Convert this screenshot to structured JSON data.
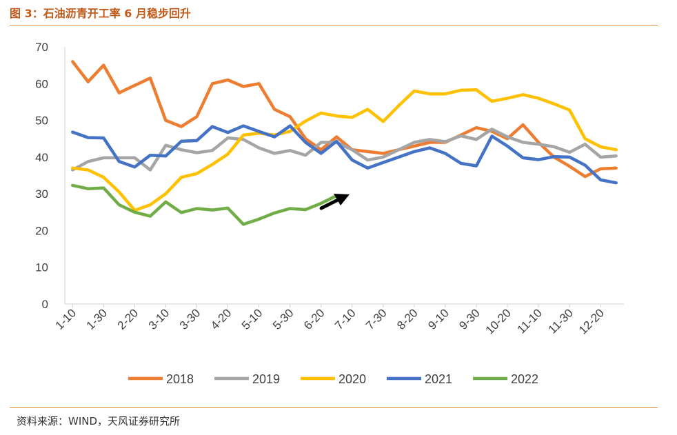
{
  "figure": {
    "title": "图 3：石油沥青开工率 6 月稳步回升",
    "source": "资料来源：WIND，天风证券研究所"
  },
  "chart_data": {
    "type": "line",
    "x_tick_labels": [
      "1-10",
      "1-30",
      "2-20",
      "3-10",
      "3-30",
      "4-20",
      "5-10",
      "5-30",
      "6-20",
      "7-10",
      "7-30",
      "8-20",
      "9-10",
      "9-30",
      "10-20",
      "11-10",
      "11-30",
      "12-20"
    ],
    "ylim": [
      0,
      70
    ],
    "y_ticks": [
      0,
      10,
      20,
      30,
      40,
      50,
      60,
      70
    ],
    "grid": false,
    "legend_position": "bottom",
    "annotation": "arrow-up-right",
    "series": [
      {
        "name": "2018",
        "color": "#ed7d31",
        "values": [
          66,
          60.5,
          65,
          57.5,
          59.5,
          61.5,
          50,
          48.3,
          51,
          60,
          61,
          59.2,
          60,
          53,
          51,
          45,
          42,
          45.5,
          42,
          41.5,
          41,
          42,
          43,
          44,
          44,
          46,
          48,
          47,
          45,
          48.8,
          44,
          40,
          37.5,
          34.7,
          36.8,
          37
        ]
      },
      {
        "name": "2019",
        "color": "#a5a5a5",
        "values": [
          36.5,
          38.8,
          39.8,
          39.8,
          39.8,
          36.5,
          43.2,
          42,
          41.2,
          41.8,
          45.2,
          44.8,
          42.5,
          41,
          41.8,
          40.5,
          44,
          44,
          42,
          39.2,
          40,
          42,
          44,
          44.8,
          44.2,
          45.8,
          44.8,
          47.6,
          45.5,
          44,
          43.5,
          42.8,
          41.3,
          43.5,
          40,
          40.3
        ]
      },
      {
        "name": "2020",
        "color": "#ffc000",
        "values": [
          37,
          36.5,
          34.5,
          30.5,
          25.5,
          27,
          30,
          34.5,
          35.5,
          38,
          40.8,
          46,
          46.5,
          46,
          47,
          49.8,
          52,
          51.2,
          50.8,
          53,
          49.7,
          54,
          58,
          57.2,
          57.2,
          58.2,
          58.3,
          55.2,
          56,
          57,
          56,
          54.5,
          52.8,
          45,
          42.8,
          42
        ]
      },
      {
        "name": "2021",
        "color": "#4472c4",
        "values": [
          46.8,
          45.3,
          45.2,
          38.8,
          37.3,
          40.5,
          40.3,
          44.3,
          44.5,
          48.3,
          46.7,
          48.5,
          47,
          45.5,
          48.5,
          44,
          41,
          44.3,
          39.2,
          37,
          38.5,
          40,
          41.5,
          42.5,
          41,
          38.3,
          37.6,
          45.7,
          43,
          39.8,
          39.3,
          40.1,
          40,
          37.8,
          33.8,
          33
        ]
      },
      {
        "name": "2022",
        "color": "#70ad47",
        "values": [
          32.3,
          31.4,
          31.6,
          27,
          25,
          23.9,
          27.8,
          24.9,
          26,
          25.6,
          26.1,
          21.7,
          23.1,
          24.8,
          26,
          25.7,
          27.4,
          29.5
        ]
      }
    ]
  }
}
